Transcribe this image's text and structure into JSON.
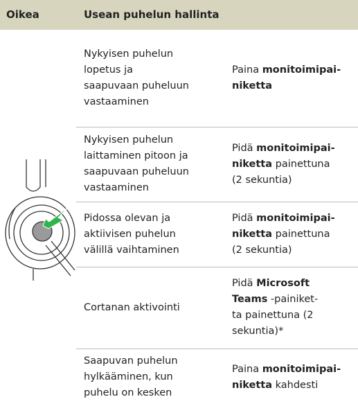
{
  "header": {
    "col1": "Oikea",
    "col2": "Usean puhelun hallinta"
  },
  "rows": [
    {
      "description": [
        "Nykyisen puhelun",
        "lopetus ja",
        "saapuvaan puheluun",
        "vastaaminen"
      ],
      "action": [
        [
          {
            "text": "Paina "
          },
          {
            "text": "monitoimipai-",
            "bold": true
          }
        ],
        [
          {
            "text": "niketta",
            "bold": true
          }
        ]
      ]
    },
    {
      "description": [
        "Nykyisen puhelun",
        "laittaminen pitoon ja",
        "saapuvaan puheluun",
        "vastaaminen"
      ],
      "action": [
        [
          {
            "text": "Pidä "
          },
          {
            "text": "monitoimipai-",
            "bold": true
          }
        ],
        [
          {
            "text": "niketta",
            "bold": true
          },
          {
            "text": " painettuna"
          }
        ],
        [
          {
            "text": "(2 sekuntia)"
          }
        ]
      ]
    },
    {
      "description": [
        "Pidossa olevan ja",
        "aktiivisen puhelun",
        "välillä vaihtaminen"
      ],
      "action": [
        [
          {
            "text": "Pidä "
          },
          {
            "text": "monitoimipai-",
            "bold": true
          }
        ],
        [
          {
            "text": "niketta",
            "bold": true
          },
          {
            "text": " painettuna"
          }
        ],
        [
          {
            "text": "(2 sekuntia)"
          }
        ]
      ]
    },
    {
      "description": [
        "Cortanan aktivointi"
      ],
      "action": [
        [
          {
            "text": "Pidä "
          },
          {
            "text": "Microsoft",
            "bold": true
          }
        ],
        [
          {
            "text": "Teams",
            "bold": true
          },
          {
            "text": " -painiket-"
          }
        ],
        [
          {
            "text": "ta painettuna (2"
          }
        ],
        [
          {
            "text": "sekuntia)*"
          }
        ]
      ]
    },
    {
      "description": [
        "Saapuvan puhelun",
        "hylkääminen, kun",
        "puhelu on kesken"
      ],
      "action": [
        [
          {
            "text": "Paina "
          },
          {
            "text": "monitoimipai-",
            "bold": true
          }
        ],
        [
          {
            "text": "niketta",
            "bold": true
          },
          {
            "text": " kahdesti"
          }
        ]
      ]
    }
  ]
}
